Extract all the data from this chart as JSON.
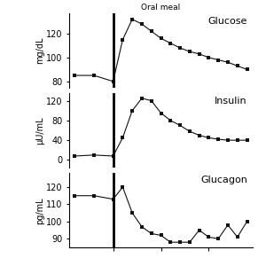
{
  "title": "Oral meal",
  "vline_x": 0,
  "x_values": [
    -2,
    -1,
    0,
    0.5,
    1,
    1.5,
    2,
    2.5,
    3,
    3.5,
    4,
    4.5,
    5,
    5.5,
    6,
    6.5,
    7
  ],
  "glucose": [
    85,
    85,
    80,
    115,
    132,
    128,
    122,
    116,
    112,
    108,
    105,
    103,
    100,
    98,
    96,
    93,
    90
  ],
  "insulin": [
    8,
    10,
    8,
    45,
    100,
    125,
    120,
    95,
    80,
    70,
    58,
    50,
    45,
    42,
    40,
    40,
    40
  ],
  "glucagon": [
    115,
    115,
    113,
    120,
    105,
    97,
    93,
    92,
    88,
    88,
    88,
    95,
    91,
    90,
    98,
    91,
    100
  ],
  "glucose_ylim": [
    75,
    137
  ],
  "glucose_yticks": [
    80,
    100,
    120
  ],
  "insulin_ylim": [
    -15,
    135
  ],
  "insulin_yticks": [
    0,
    40,
    80,
    120
  ],
  "glucagon_ylim": [
    85,
    128
  ],
  "glucagon_yticks": [
    90,
    100,
    110,
    120
  ],
  "glucose_label": "mg/dL",
  "insulin_label": "μU/mL",
  "glucagon_label": "pg/mL",
  "glucose_name": "Glucose",
  "insulin_name": "Insulin",
  "glucagon_name": "Glucagon",
  "line_color": "#111111",
  "marker": "s",
  "marker_size": 3.5,
  "background_color": "#ffffff"
}
